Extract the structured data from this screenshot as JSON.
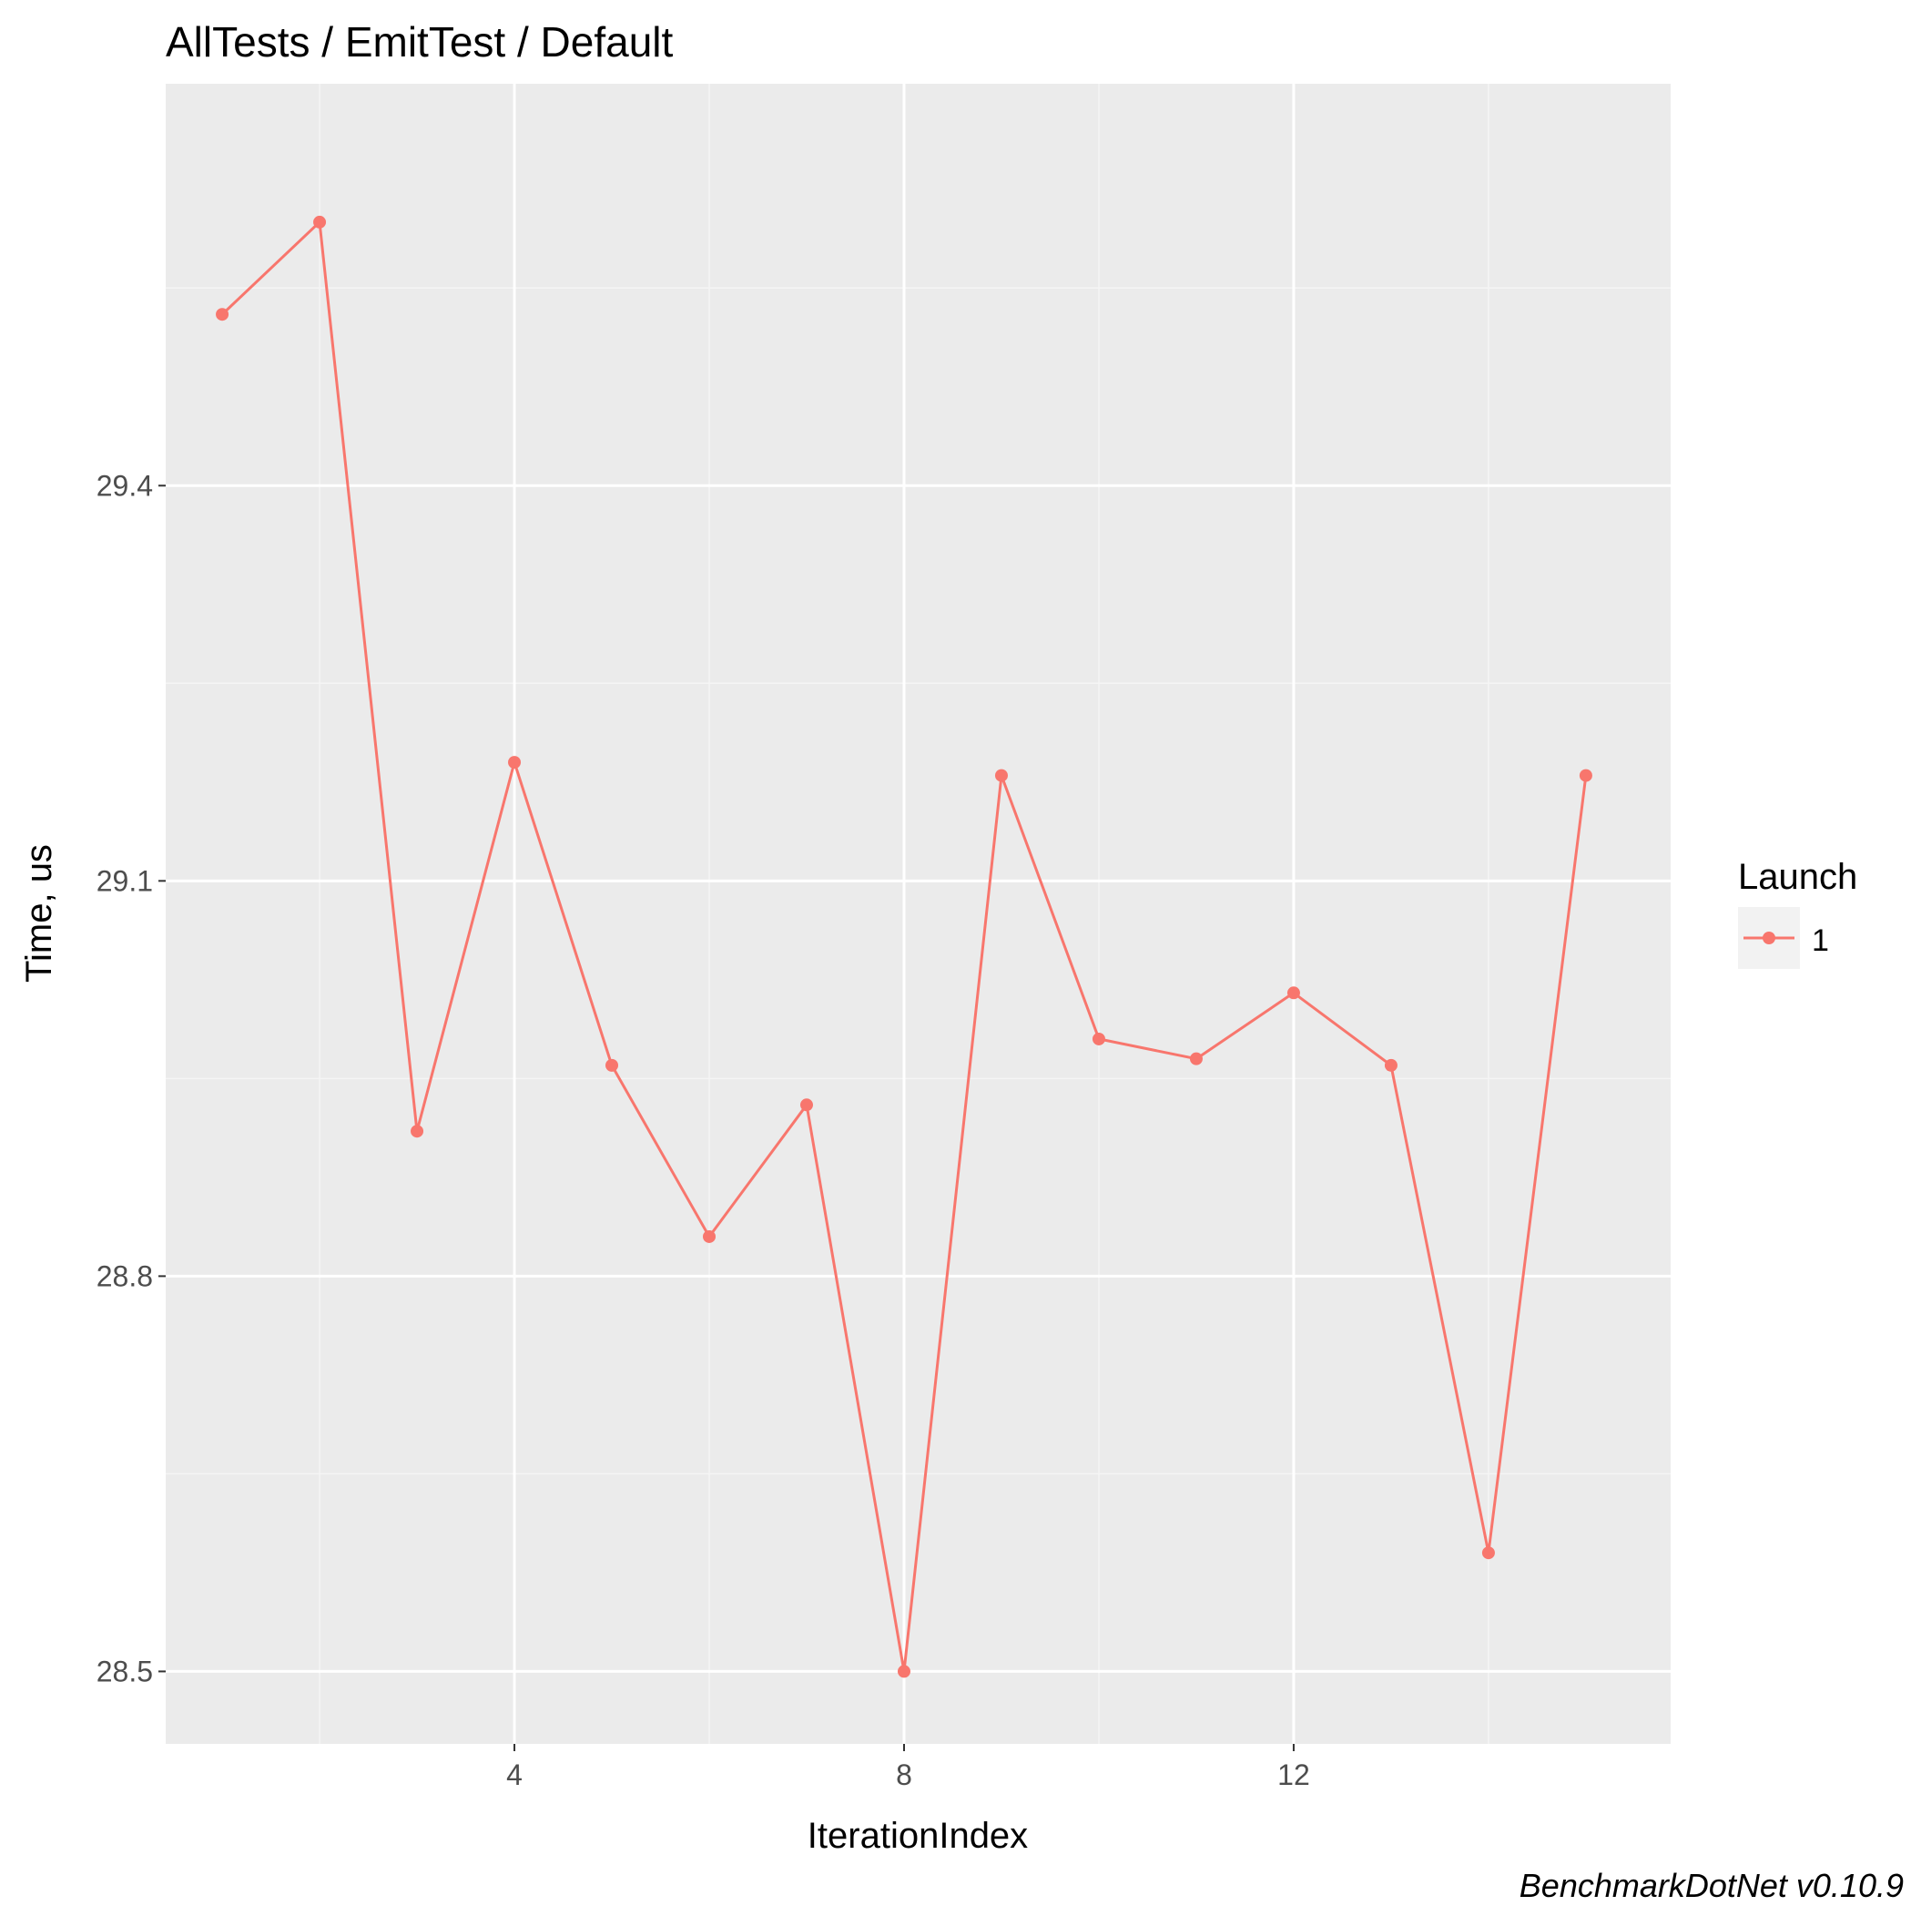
{
  "chart_data": {
    "type": "line",
    "title": "AllTests / EmitTest / Default",
    "xlabel": "IterationIndex",
    "ylabel": "Time, us",
    "x": [
      1,
      2,
      3,
      4,
      5,
      6,
      7,
      8,
      9,
      10,
      11,
      12,
      13,
      14,
      15
    ],
    "xlim": [
      0.42,
      15.87
    ],
    "ylim": [
      28.445,
      29.705
    ],
    "x_ticks": [
      4,
      8,
      12
    ],
    "x_tick_labels": [
      "4",
      "8",
      "12"
    ],
    "y_ticks": [
      28.5,
      28.8,
      29.1,
      29.4
    ],
    "y_tick_labels": [
      "28.5",
      "28.8",
      "29.1",
      "29.4"
    ],
    "grid": true,
    "legend": {
      "title": "Launch",
      "position": "right"
    },
    "series": [
      {
        "name": "1",
        "color": "#F8766D",
        "values": [
          29.53,
          29.6,
          28.91,
          29.19,
          28.96,
          28.83,
          28.93,
          28.5,
          29.18,
          28.98,
          28.965,
          29.015,
          28.96,
          28.59,
          29.18
        ]
      }
    ],
    "caption": "BenchmarkDotNet v0.10.9"
  },
  "colors": {
    "panel_background": "#EBEBEB",
    "grid_major": "#FFFFFF",
    "grid_minor": "#F5F5F5",
    "text": "#000000",
    "tick_text": "#4D4D4D"
  }
}
